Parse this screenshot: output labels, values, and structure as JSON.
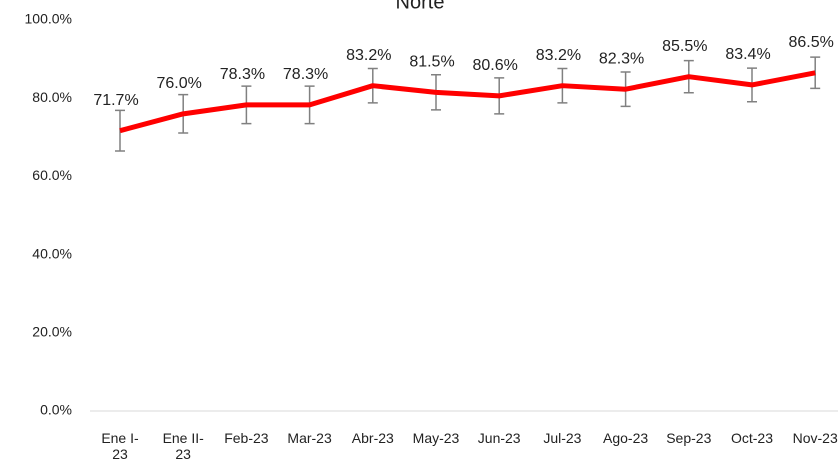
{
  "chart_data": {
    "type": "line",
    "title": "Norte",
    "categories": [
      "Ene I-23",
      "Ene II-23",
      "Feb-23",
      "Mar-23",
      "Abr-23",
      "May-23",
      "Jun-23",
      "Jul-23",
      "Ago-23",
      "Sep-23",
      "Oct-23",
      "Nov-23"
    ],
    "series": [
      {
        "name": "Norte",
        "color": "#ff0000",
        "values": [
          71.7,
          76.0,
          78.3,
          78.3,
          83.2,
          81.5,
          80.6,
          83.2,
          82.3,
          85.5,
          83.4,
          86.5
        ],
        "value_labels": [
          "71.7%",
          "76.0%",
          "78.3%",
          "78.3%",
          "83.2%",
          "81.5%",
          "80.6%",
          "83.2%",
          "82.3%",
          "85.5%",
          "83.4%",
          "86.5%"
        ],
        "errors": [
          5.2,
          4.9,
          4.8,
          4.8,
          4.4,
          4.5,
          4.6,
          4.4,
          4.4,
          4.1,
          4.3,
          4.0
        ]
      }
    ],
    "ylim": [
      0,
      100
    ],
    "yticks": [
      {
        "value": 0,
        "label": "0.0%"
      },
      {
        "value": 20,
        "label": "20.0%"
      },
      {
        "value": 40,
        "label": "40.0%"
      },
      {
        "value": 60,
        "label": "60.0%"
      },
      {
        "value": 80,
        "label": "80.0%"
      },
      {
        "value": 100,
        "label": "100.0%"
      }
    ],
    "grid": false
  }
}
